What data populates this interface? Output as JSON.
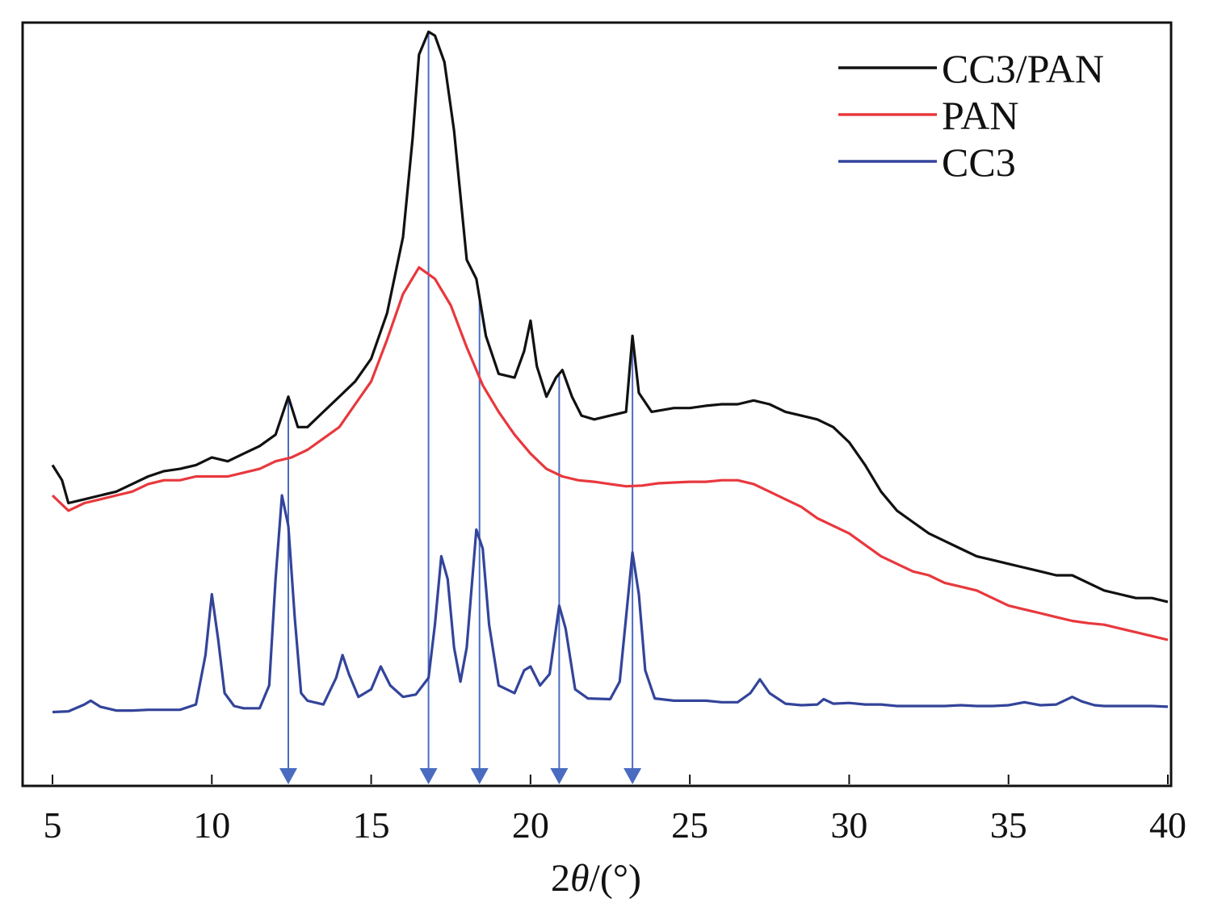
{
  "chart_data": {
    "type": "line",
    "title": "",
    "xlabel": "2θ/(°)",
    "xlabel_parts": {
      "num": "2",
      "sym": "θ",
      "unit": "/(°)"
    },
    "ylabel": "",
    "xlim": [
      5,
      40
    ],
    "ylim": [
      0,
      100
    ],
    "xticks": [
      5,
      10,
      15,
      20,
      25,
      30,
      35,
      40
    ],
    "xtick_labels": [
      "5",
      "10",
      "15",
      "20",
      "25",
      "30",
      "35",
      "40"
    ],
    "grid": false,
    "legend_position": "top-right",
    "series": [
      {
        "name": "CC3/PAN",
        "color": "#111111",
        "points": [
          [
            5,
            42
          ],
          [
            5.3,
            40
          ],
          [
            5.5,
            37
          ],
          [
            6,
            37.5
          ],
          [
            6.5,
            38
          ],
          [
            7,
            38.5
          ],
          [
            7.5,
            39.5
          ],
          [
            8,
            40.5
          ],
          [
            8.5,
            41.2
          ],
          [
            9,
            41.5
          ],
          [
            9.5,
            42
          ],
          [
            10,
            43
          ],
          [
            10.5,
            42.5
          ],
          [
            11,
            43.5
          ],
          [
            11.5,
            44.5
          ],
          [
            12,
            46
          ],
          [
            12.4,
            51
          ],
          [
            12.7,
            47
          ],
          [
            13,
            47
          ],
          [
            13.5,
            49
          ],
          [
            14,
            51
          ],
          [
            14.5,
            53
          ],
          [
            15,
            56
          ],
          [
            15.5,
            62
          ],
          [
            16,
            72
          ],
          [
            16.3,
            85
          ],
          [
            16.5,
            96
          ],
          [
            16.8,
            99
          ],
          [
            17,
            98.5
          ],
          [
            17.3,
            95
          ],
          [
            17.6,
            86
          ],
          [
            18,
            69
          ],
          [
            18.3,
            66.5
          ],
          [
            18.6,
            59
          ],
          [
            19,
            54
          ],
          [
            19.5,
            53.5
          ],
          [
            19.8,
            57
          ],
          [
            20,
            61
          ],
          [
            20.2,
            55
          ],
          [
            20.5,
            51
          ],
          [
            20.8,
            53.5
          ],
          [
            21,
            54.5
          ],
          [
            21.3,
            51
          ],
          [
            21.6,
            48.5
          ],
          [
            22,
            48
          ],
          [
            22.5,
            48.5
          ],
          [
            23,
            49
          ],
          [
            23.2,
            59
          ],
          [
            23.4,
            51.5
          ],
          [
            23.8,
            49
          ],
          [
            24.5,
            49.5
          ],
          [
            25,
            49.5
          ],
          [
            25.5,
            49.8
          ],
          [
            26,
            50
          ],
          [
            26.5,
            50
          ],
          [
            27,
            50.5
          ],
          [
            27.5,
            50
          ],
          [
            28,
            49
          ],
          [
            28.5,
            48.5
          ],
          [
            29,
            48
          ],
          [
            29.5,
            47
          ],
          [
            30,
            45
          ],
          [
            30.5,
            42
          ],
          [
            31,
            38.5
          ],
          [
            31.5,
            36
          ],
          [
            32,
            34.5
          ],
          [
            32.5,
            33
          ],
          [
            33,
            32
          ],
          [
            33.5,
            31
          ],
          [
            34,
            30
          ],
          [
            34.5,
            29.5
          ],
          [
            35,
            29
          ],
          [
            35.5,
            28.5
          ],
          [
            36,
            28
          ],
          [
            36.5,
            27.5
          ],
          [
            37,
            27.5
          ],
          [
            37.5,
            26.5
          ],
          [
            38,
            25.5
          ],
          [
            38.5,
            25
          ],
          [
            39,
            24.5
          ],
          [
            39.5,
            24.5
          ],
          [
            40,
            24
          ]
        ]
      },
      {
        "name": "PAN",
        "color": "#e8383d",
        "points": [
          [
            5,
            38
          ],
          [
            5.5,
            36
          ],
          [
            6,
            37
          ],
          [
            6.5,
            37.5
          ],
          [
            7,
            38
          ],
          [
            7.5,
            38.5
          ],
          [
            8,
            39.5
          ],
          [
            8.5,
            40
          ],
          [
            9,
            40
          ],
          [
            9.5,
            40.5
          ],
          [
            10,
            40.5
          ],
          [
            10.5,
            40.5
          ],
          [
            11,
            41
          ],
          [
            11.5,
            41.5
          ],
          [
            12,
            42.5
          ],
          [
            12.5,
            43
          ],
          [
            13,
            44
          ],
          [
            13.5,
            45.5
          ],
          [
            14,
            47
          ],
          [
            14.5,
            50
          ],
          [
            15,
            53
          ],
          [
            15.5,
            58.5
          ],
          [
            16,
            64.5
          ],
          [
            16.5,
            68
          ],
          [
            17,
            66.5
          ],
          [
            17.5,
            63
          ],
          [
            18,
            57.5
          ],
          [
            18.5,
            52.5
          ],
          [
            19,
            49
          ],
          [
            19.5,
            46
          ],
          [
            20,
            43.5
          ],
          [
            20.5,
            41.5
          ],
          [
            21,
            40.5
          ],
          [
            21.5,
            40
          ],
          [
            22,
            39.8
          ],
          [
            22.5,
            39.5
          ],
          [
            23,
            39.2
          ],
          [
            23.5,
            39.3
          ],
          [
            24,
            39.6
          ],
          [
            24.5,
            39.7
          ],
          [
            25,
            39.8
          ],
          [
            25.5,
            39.8
          ],
          [
            26,
            40
          ],
          [
            26.5,
            40
          ],
          [
            27,
            39.5
          ],
          [
            27.5,
            38.5
          ],
          [
            28,
            37.5
          ],
          [
            28.5,
            36.5
          ],
          [
            29,
            35
          ],
          [
            29.5,
            34
          ],
          [
            30,
            33
          ],
          [
            30.5,
            31.5
          ],
          [
            31,
            30
          ],
          [
            31.5,
            29
          ],
          [
            32,
            28
          ],
          [
            32.5,
            27.5
          ],
          [
            33,
            26.5
          ],
          [
            33.5,
            26
          ],
          [
            34,
            25.5
          ],
          [
            34.5,
            24.5
          ],
          [
            35,
            23.5
          ],
          [
            35.5,
            23
          ],
          [
            36,
            22.5
          ],
          [
            36.5,
            22
          ],
          [
            37,
            21.5
          ],
          [
            37.5,
            21.2
          ],
          [
            38,
            21
          ],
          [
            38.5,
            20.5
          ],
          [
            39,
            20
          ],
          [
            39.5,
            19.5
          ],
          [
            40,
            19
          ]
        ]
      },
      {
        "name": "CC3",
        "color": "#33449a",
        "points": [
          [
            5,
            9.5
          ],
          [
            5.5,
            9.6
          ],
          [
            6,
            10.5
          ],
          [
            6.2,
            11
          ],
          [
            6.5,
            10.2
          ],
          [
            7,
            9.7
          ],
          [
            7.5,
            9.7
          ],
          [
            8,
            9.8
          ],
          [
            8.5,
            9.8
          ],
          [
            9,
            9.8
          ],
          [
            9.5,
            10.5
          ],
          [
            9.8,
            17
          ],
          [
            10,
            25
          ],
          [
            10.2,
            19
          ],
          [
            10.4,
            12
          ],
          [
            10.7,
            10.3
          ],
          [
            11,
            10
          ],
          [
            11.5,
            10
          ],
          [
            11.8,
            13
          ],
          [
            12,
            27
          ],
          [
            12.2,
            38
          ],
          [
            12.4,
            34
          ],
          [
            12.6,
            22
          ],
          [
            12.8,
            12
          ],
          [
            13,
            11
          ],
          [
            13.5,
            10.5
          ],
          [
            13.9,
            14
          ],
          [
            14.1,
            17
          ],
          [
            14.3,
            14.5
          ],
          [
            14.6,
            11.5
          ],
          [
            15,
            12.5
          ],
          [
            15.3,
            15.5
          ],
          [
            15.6,
            13
          ],
          [
            16,
            11.5
          ],
          [
            16.4,
            11.8
          ],
          [
            16.8,
            14
          ],
          [
            17,
            21
          ],
          [
            17.2,
            30
          ],
          [
            17.4,
            27
          ],
          [
            17.6,
            18
          ],
          [
            17.8,
            13.5
          ],
          [
            18,
            18
          ],
          [
            18.3,
            33.5
          ],
          [
            18.5,
            31
          ],
          [
            18.7,
            21
          ],
          [
            19,
            13
          ],
          [
            19.5,
            12
          ],
          [
            19.8,
            15
          ],
          [
            20,
            15.5
          ],
          [
            20.3,
            13
          ],
          [
            20.6,
            14.5
          ],
          [
            20.9,
            23.5
          ],
          [
            21.1,
            20.5
          ],
          [
            21.4,
            12.5
          ],
          [
            21.8,
            11.3
          ],
          [
            22.5,
            11.2
          ],
          [
            22.8,
            13.5
          ],
          [
            23,
            22
          ],
          [
            23.2,
            30.5
          ],
          [
            23.4,
            25
          ],
          [
            23.6,
            15
          ],
          [
            23.9,
            11.3
          ],
          [
            24.5,
            11
          ],
          [
            25,
            11
          ],
          [
            25.5,
            11
          ],
          [
            26,
            10.8
          ],
          [
            26.5,
            10.8
          ],
          [
            26.9,
            12
          ],
          [
            27.2,
            13.8
          ],
          [
            27.5,
            12
          ],
          [
            28,
            10.6
          ],
          [
            28.5,
            10.4
          ],
          [
            29,
            10.5
          ],
          [
            29.2,
            11.2
          ],
          [
            29.5,
            10.6
          ],
          [
            30,
            10.7
          ],
          [
            30.5,
            10.5
          ],
          [
            31,
            10.5
          ],
          [
            31.5,
            10.3
          ],
          [
            32,
            10.3
          ],
          [
            32.5,
            10.3
          ],
          [
            33,
            10.3
          ],
          [
            33.5,
            10.4
          ],
          [
            34,
            10.3
          ],
          [
            34.5,
            10.3
          ],
          [
            35,
            10.4
          ],
          [
            35.5,
            10.8
          ],
          [
            36,
            10.4
          ],
          [
            36.5,
            10.5
          ],
          [
            37,
            11.5
          ],
          [
            37.3,
            10.9
          ],
          [
            37.7,
            10.4
          ],
          [
            38,
            10.3
          ],
          [
            38.5,
            10.3
          ],
          [
            39,
            10.3
          ],
          [
            39.5,
            10.3
          ],
          [
            40,
            10.2
          ]
        ]
      }
    ],
    "annotations": {
      "arrow_color": "#4a6cc0",
      "arrows_at_x": [
        12.4,
        16.8,
        18.4,
        20.9,
        23.2
      ]
    }
  }
}
